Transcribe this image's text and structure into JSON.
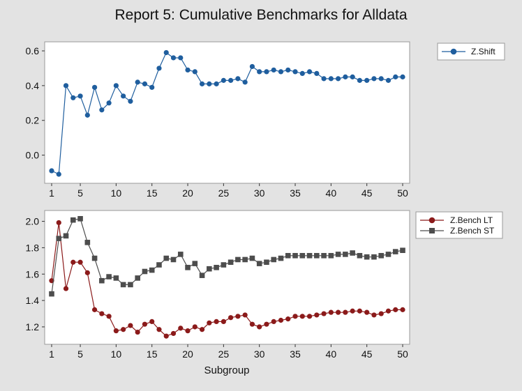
{
  "title": "Report 5: Cumulative Benchmarks for Alldata",
  "colors": {
    "background": "#e3e3e3",
    "panel": "#ffffff",
    "zshift": "#1f5e9e",
    "zbench_lt": "#8b1a1a",
    "zbench_st": "#4d4d4d"
  },
  "chart_data": [
    {
      "type": "line",
      "xlabel": "",
      "ylabel": "",
      "xlim": [
        1,
        50
      ],
      "ylim": [
        -0.13,
        0.62
      ],
      "xticks": [
        1,
        5,
        10,
        15,
        20,
        25,
        30,
        35,
        40,
        45,
        50
      ],
      "yticks": [
        0.0,
        0.2,
        0.4,
        0.6
      ],
      "ytick_labels": [
        "0.0",
        "0.2",
        "0.4",
        "0.6"
      ],
      "legend_position": "right",
      "series": [
        {
          "name": "Z.Shift",
          "marker": "circle",
          "color": "#1f5e9e",
          "x": [
            1,
            2,
            3,
            4,
            5,
            6,
            7,
            8,
            9,
            10,
            11,
            12,
            13,
            14,
            15,
            16,
            17,
            18,
            19,
            20,
            21,
            22,
            23,
            24,
            25,
            26,
            27,
            28,
            29,
            30,
            31,
            32,
            33,
            34,
            35,
            36,
            37,
            38,
            39,
            40,
            41,
            42,
            43,
            44,
            45,
            46,
            47,
            48,
            49,
            50
          ],
          "values": [
            -0.09,
            -0.11,
            0.4,
            0.33,
            0.34,
            0.23,
            0.39,
            0.26,
            0.3,
            0.4,
            0.34,
            0.31,
            0.42,
            0.41,
            0.39,
            0.5,
            0.59,
            0.56,
            0.56,
            0.49,
            0.48,
            0.41,
            0.41,
            0.41,
            0.43,
            0.43,
            0.44,
            0.42,
            0.51,
            0.48,
            0.48,
            0.49,
            0.48,
            0.49,
            0.48,
            0.47,
            0.48,
            0.47,
            0.44,
            0.44,
            0.44,
            0.45,
            0.45,
            0.43,
            0.43,
            0.44,
            0.44,
            0.43,
            0.45,
            0.45
          ]
        }
      ]
    },
    {
      "type": "line",
      "xlabel": "Subgroup",
      "ylabel": "",
      "xlim": [
        1,
        50
      ],
      "ylim": [
        1.11,
        2.04
      ],
      "xticks": [
        1,
        5,
        10,
        15,
        20,
        25,
        30,
        35,
        40,
        45,
        50
      ],
      "yticks": [
        1.2,
        1.4,
        1.6,
        1.8,
        2.0
      ],
      "ytick_labels": [
        "1.2",
        "1.4",
        "1.6",
        "1.8",
        "2.0"
      ],
      "legend_position": "right",
      "series": [
        {
          "name": "Z.Bench LT",
          "marker": "circle",
          "color": "#8b1a1a",
          "x": [
            1,
            2,
            3,
            4,
            5,
            6,
            7,
            8,
            9,
            10,
            11,
            12,
            13,
            14,
            15,
            16,
            17,
            18,
            19,
            20,
            21,
            22,
            23,
            24,
            25,
            26,
            27,
            28,
            29,
            30,
            31,
            32,
            33,
            34,
            35,
            36,
            37,
            38,
            39,
            40,
            41,
            42,
            43,
            44,
            45,
            46,
            47,
            48,
            49,
            50
          ],
          "values": [
            1.55,
            1.99,
            1.49,
            1.69,
            1.69,
            1.61,
            1.33,
            1.3,
            1.28,
            1.17,
            1.18,
            1.21,
            1.16,
            1.22,
            1.24,
            1.18,
            1.13,
            1.15,
            1.19,
            1.17,
            1.2,
            1.18,
            1.23,
            1.24,
            1.24,
            1.27,
            1.28,
            1.29,
            1.22,
            1.2,
            1.22,
            1.24,
            1.25,
            1.26,
            1.28,
            1.28,
            1.28,
            1.29,
            1.3,
            1.31,
            1.31,
            1.31,
            1.32,
            1.32,
            1.31,
            1.29,
            1.3,
            1.32,
            1.33,
            1.33
          ]
        },
        {
          "name": "Z.Bench ST",
          "marker": "square",
          "color": "#4d4d4d",
          "x": [
            1,
            2,
            3,
            4,
            5,
            6,
            7,
            8,
            9,
            10,
            11,
            12,
            13,
            14,
            15,
            16,
            17,
            18,
            19,
            20,
            21,
            22,
            23,
            24,
            25,
            26,
            27,
            28,
            29,
            30,
            31,
            32,
            33,
            34,
            35,
            36,
            37,
            38,
            39,
            40,
            41,
            42,
            43,
            44,
            45,
            46,
            47,
            48,
            49,
            50
          ],
          "values": [
            1.45,
            1.87,
            1.89,
            2.01,
            2.02,
            1.84,
            1.72,
            1.55,
            1.58,
            1.57,
            1.52,
            1.52,
            1.57,
            1.62,
            1.63,
            1.67,
            1.72,
            1.71,
            1.75,
            1.65,
            1.68,
            1.59,
            1.64,
            1.65,
            1.67,
            1.69,
            1.71,
            1.71,
            1.72,
            1.68,
            1.69,
            1.71,
            1.72,
            1.74,
            1.74,
            1.74,
            1.74,
            1.74,
            1.74,
            1.74,
            1.75,
            1.75,
            1.76,
            1.74,
            1.73,
            1.73,
            1.74,
            1.75,
            1.77,
            1.78
          ]
        }
      ]
    }
  ]
}
